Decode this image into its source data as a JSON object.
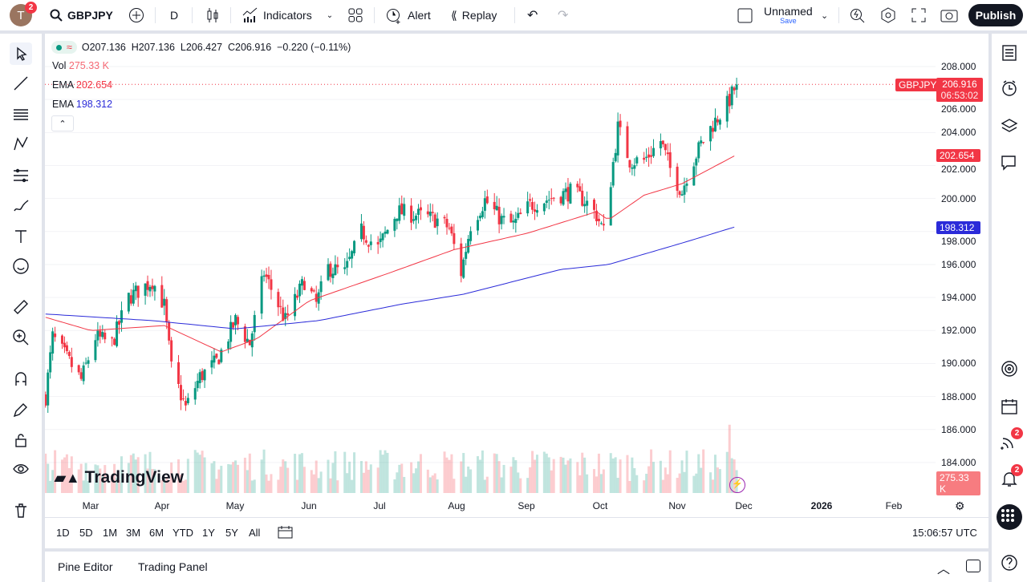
{
  "topbar": {
    "avatar_letter": "T",
    "avatar_badge": "2",
    "symbol": "GBPJPY",
    "interval": "D",
    "indicators_label": "Indicators",
    "alert_label": "Alert",
    "replay_label": "Replay",
    "layout_name": "Unnamed",
    "save_label": "Save",
    "publish_label": "Publish"
  },
  "legend": {
    "ohlc": "O207.136  H207.136  L206.427  C206.916  −0.220 (−0.11%)",
    "vol_label": "Vol",
    "vol_value": "275.33 K",
    "ema1_label": "EMA",
    "ema1_value": "202.654",
    "ema2_label": "EMA",
    "ema2_value": "198.312"
  },
  "price_axis": {
    "ticks": [
      "208.000",
      "206.000",
      "204.000",
      "202.000",
      "200.000",
      "198.000",
      "196.000",
      "194.000",
      "192.000",
      "190.000",
      "188.000",
      "186.000",
      "184.000"
    ],
    "symbol_tag": "GBPJPY",
    "last_price": "206.916",
    "countdown": "06:53:02",
    "ema1_tag": "202.654",
    "ema2_tag": "198.312",
    "vol_tag": "275.33 K"
  },
  "time_axis": {
    "labels": [
      "Mar",
      "Apr",
      "May",
      "Jun",
      "Jul",
      "Aug",
      "Sep",
      "Oct",
      "Nov",
      "Dec",
      "2026",
      "Feb"
    ]
  },
  "watermark": "TradingView",
  "ranges": [
    "1D",
    "5D",
    "1M",
    "3M",
    "6M",
    "YTD",
    "1Y",
    "5Y",
    "All"
  ],
  "clock": "15:06:57 UTC",
  "bottom_tabs": [
    "Pine Editor",
    "Trading Panel"
  ],
  "right_badges": {
    "signals": "2",
    "alerts": "2"
  },
  "colors": {
    "up": "#089981",
    "down": "#f23645",
    "ema1": "#f23645",
    "ema2": "#2b2bd9",
    "accent": "#2962ff"
  },
  "chart_data": {
    "type": "candlestick",
    "symbol": "GBPJPY",
    "timeframe": "D",
    "ylim": [
      183,
      209
    ],
    "close_path": [
      [
        "2025-02-10",
        188.0
      ],
      [
        "2025-02-13",
        191.6
      ],
      [
        "2025-02-25",
        189.0
      ],
      [
        "2025-03-03",
        191.6
      ],
      [
        "2025-03-10",
        191.2
      ],
      [
        "2025-03-17",
        194.0
      ],
      [
        "2025-03-27",
        195.0
      ],
      [
        "2025-04-01",
        193.5
      ],
      [
        "2025-04-04",
        189.7
      ],
      [
        "2025-04-10",
        187.3
      ],
      [
        "2025-04-16",
        189.2
      ],
      [
        "2025-04-23",
        190.1
      ],
      [
        "2025-05-01",
        192.6
      ],
      [
        "2025-05-07",
        191.2
      ],
      [
        "2025-05-13",
        195.5
      ],
      [
        "2025-05-22",
        192.6
      ],
      [
        "2025-05-30",
        195.0
      ],
      [
        "2025-06-04",
        193.6
      ],
      [
        "2025-06-09",
        195.8
      ],
      [
        "2025-06-16",
        195.5
      ],
      [
        "2025-06-23",
        198.0
      ],
      [
        "2025-06-30",
        197.0
      ],
      [
        "2025-07-08",
        199.2
      ],
      [
        "2025-07-16",
        199.0
      ],
      [
        "2025-07-25",
        198.7
      ],
      [
        "2025-07-30",
        198.2
      ],
      [
        "2025-08-04",
        195.5
      ],
      [
        "2025-08-08",
        198.4
      ],
      [
        "2025-08-14",
        199.9
      ],
      [
        "2025-08-21",
        198.7
      ],
      [
        "2025-08-26",
        198.4
      ],
      [
        "2025-09-02",
        199.6
      ],
      [
        "2025-09-12",
        200.1
      ],
      [
        "2025-09-19",
        200.4
      ],
      [
        "2025-09-25",
        199.9
      ],
      [
        "2025-09-30",
        199.0
      ],
      [
        "2025-10-03",
        198.0
      ],
      [
        "2025-10-06",
        201.1
      ],
      [
        "2025-10-09",
        204.3
      ],
      [
        "2025-10-14",
        202.3
      ],
      [
        "2025-10-20",
        202.3
      ],
      [
        "2025-10-27",
        203.5
      ],
      [
        "2025-10-31",
        201.8
      ],
      [
        "2025-11-05",
        200.4
      ],
      [
        "2025-11-07",
        201.4
      ],
      [
        "2025-11-13",
        203.3
      ],
      [
        "2025-11-18",
        204.5
      ],
      [
        "2025-11-24",
        205.7
      ],
      [
        "2025-11-28",
        206.916
      ]
    ],
    "ema_50": [
      [
        "2025-02-10",
        192.8
      ],
      [
        "2025-03-01",
        192.0
      ],
      [
        "2025-04-01",
        192.3
      ],
      [
        "2025-04-25",
        190.7
      ],
      [
        "2025-05-10",
        191.5
      ],
      [
        "2025-06-01",
        193.8
      ],
      [
        "2025-07-05",
        195.5
      ],
      [
        "2025-08-01",
        196.9
      ],
      [
        "2025-09-01",
        197.9
      ],
      [
        "2025-09-30",
        199.2
      ],
      [
        "2025-10-05",
        198.7
      ],
      [
        "2025-10-20",
        200.2
      ],
      [
        "2025-11-05",
        200.9
      ],
      [
        "2025-11-28",
        202.654
      ]
    ],
    "ema_200": [
      [
        "2025-02-10",
        193.0
      ],
      [
        "2025-03-27",
        192.6
      ],
      [
        "2025-05-01",
        192.1
      ],
      [
        "2025-06-05",
        192.6
      ],
      [
        "2025-07-10",
        193.6
      ],
      [
        "2025-08-05",
        194.2
      ],
      [
        "2025-09-15",
        195.7
      ],
      [
        "2025-10-05",
        196.0
      ],
      [
        "2025-11-05",
        197.3
      ],
      [
        "2025-11-28",
        198.312
      ]
    ],
    "volume_last": "275.33K"
  }
}
